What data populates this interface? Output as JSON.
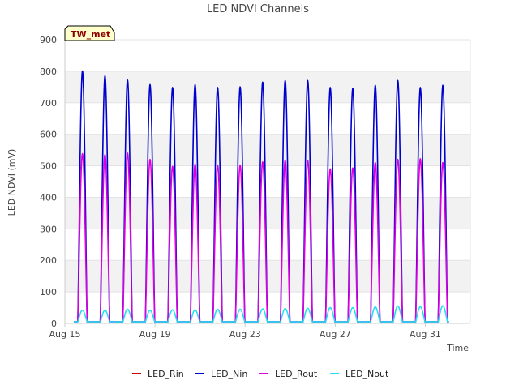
{
  "chart_data": {
    "type": "line",
    "title": "LED NDVI Channels",
    "xlabel": "Time",
    "ylabel": "LED NDVI (mV)",
    "xlim": [
      "2024-08-15T00:00",
      "2024-09-02T00:00"
    ],
    "ylim": [
      0,
      900
    ],
    "x_ticks": [
      {
        "date": "2024-08-15",
        "label": "Aug 15"
      },
      {
        "date": "2024-08-19",
        "label": "Aug 19"
      },
      {
        "date": "2024-08-23",
        "label": "Aug 23"
      },
      {
        "date": "2024-08-27",
        "label": "Aug 27"
      },
      {
        "date": "2024-08-31",
        "label": "Aug 31"
      }
    ],
    "y_ticks": [
      0,
      100,
      200,
      300,
      400,
      500,
      600,
      700,
      800,
      900
    ],
    "grid": true,
    "legend_position": "bottom",
    "annotation": "TW_met",
    "series_daily_peaks": {
      "days": [
        "2024-08-15",
        "2024-08-16",
        "2024-08-17",
        "2024-08-18",
        "2024-08-19",
        "2024-08-20",
        "2024-08-21",
        "2024-08-22",
        "2024-08-23",
        "2024-08-24",
        "2024-08-25",
        "2024-08-26",
        "2024-08-27",
        "2024-08-28",
        "2024-08-29",
        "2024-08-30",
        "2024-08-31"
      ],
      "baseline": 5
    },
    "series": [
      {
        "name": "LED_Rin",
        "color": "#cc0000",
        "peaks": [
          null,
          null,
          null,
          null,
          null,
          null,
          null,
          null,
          null,
          null,
          null,
          null,
          null,
          null,
          null,
          null,
          null
        ]
      },
      {
        "name": "LED_Nin",
        "color": "#0000cc",
        "peaks": [
          800,
          785,
          772,
          757,
          748,
          757,
          748,
          750,
          765,
          770,
          770,
          748,
          745,
          755,
          770,
          748,
          755
        ]
      },
      {
        "name": "LED_Rout",
        "color": "#dd00dd",
        "peaks": [
          538,
          535,
          540,
          520,
          498,
          505,
          502,
          502,
          512,
          517,
          517,
          490,
          493,
          510,
          520,
          522,
          510
        ]
      },
      {
        "name": "LED_Nout",
        "color": "#22e0ee",
        "peaks": [
          42,
          42,
          45,
          42,
          43,
          43,
          45,
          45,
          46,
          47,
          48,
          50,
          50,
          52,
          55,
          53,
          56
        ]
      }
    ]
  }
}
